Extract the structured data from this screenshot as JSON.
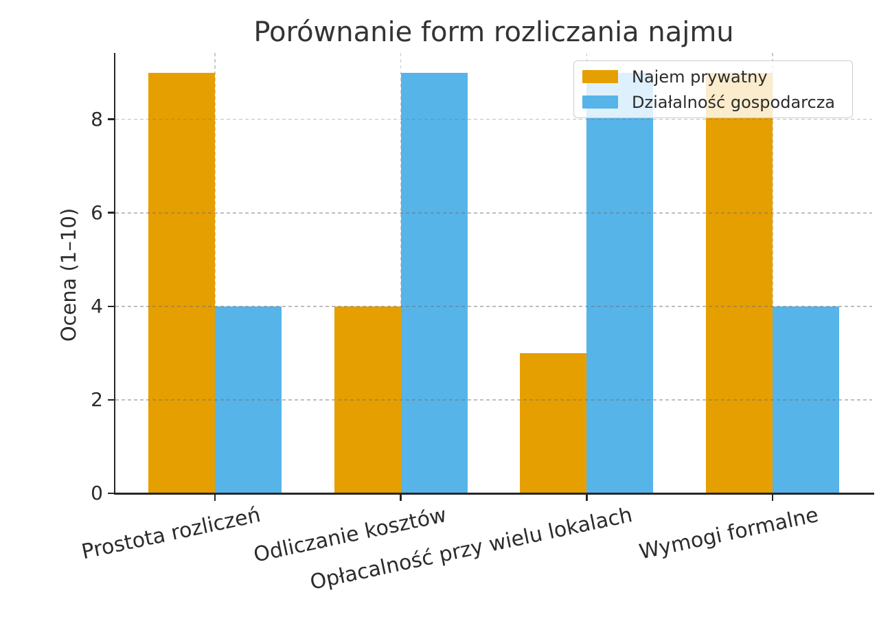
{
  "chart_data": {
    "type": "bar",
    "title": "Porównanie form rozliczania najmu",
    "xlabel": "",
    "ylabel": "Ocena (1–10)",
    "categories": [
      "Prostota rozliczeń",
      "Odliczanie kosztów",
      "Opłacalność przy wielu lokalach",
      "Wymogi formalne"
    ],
    "series": [
      {
        "name": "Najem prywatny",
        "color": "#E69F00",
        "values": [
          9,
          4,
          3,
          9
        ]
      },
      {
        "name": "Działalność gospodarcza",
        "color": "#56B4E9",
        "values": [
          4,
          9,
          9,
          4
        ]
      }
    ],
    "yticks": [
      0,
      2,
      4,
      6,
      8
    ],
    "ylim": [
      0,
      9.4
    ],
    "grid": "dashed-both-axes",
    "legend_position": "upper-right"
  },
  "colors": {
    "series_private": "#E69F00",
    "series_business": "#56B4E9",
    "grid": "#c9c9c9",
    "axis": "#262626",
    "text": "#2b2b2b",
    "title_text": "#333333",
    "legend_border": "#cccccc",
    "legend_background": "rgba(255,255,255,0.8)",
    "background": "#ffffff"
  }
}
